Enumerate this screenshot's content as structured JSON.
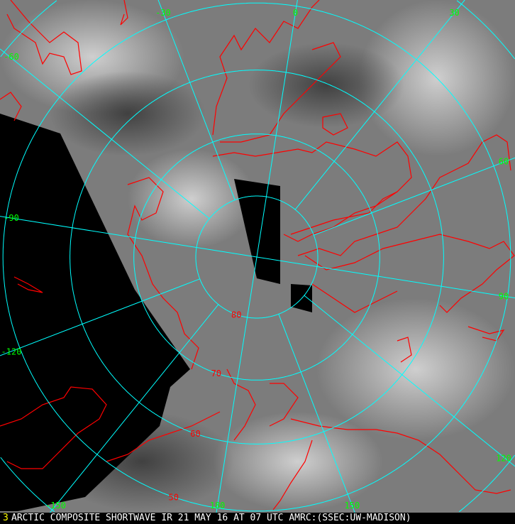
{
  "caption": {
    "frame_number": "3",
    "text": "ARCTIC COMPOSITE SHORTWAVE IR 21 MAY 16 AT 07 UTC AMRC:(SSEC:UW-MADISON)"
  },
  "projection": "polar-stereographic-north",
  "colors": {
    "grid": "#00ffff",
    "coastline": "#ff0000",
    "longitude_label": "#00ff00",
    "latitude_label": "#ff0000",
    "frame_number": "#ffff00",
    "caption_text": "#ffffff",
    "no_data": "#000000"
  },
  "grid": {
    "latitudes": [
      {
        "value": 80,
        "label": "80"
      },
      {
        "value": 70,
        "label": "70"
      },
      {
        "value": 60,
        "label": "60"
      },
      {
        "value": 50,
        "label": "50"
      },
      {
        "value": 40,
        "label": ""
      }
    ],
    "longitudes": [
      {
        "value": 0,
        "label": "0"
      },
      {
        "value": 30,
        "label": "30"
      },
      {
        "value": 60,
        "label": "60"
      },
      {
        "value": 90,
        "label": "90"
      },
      {
        "value": 120,
        "label": "120"
      },
      {
        "value": 150,
        "label": "150"
      },
      {
        "value": 180,
        "label": "180"
      },
      {
        "value": -150,
        "label": "-150"
      },
      {
        "value": -120,
        "label": "-120"
      },
      {
        "value": -90,
        "label": "-90"
      },
      {
        "value": -60,
        "label": "-60"
      },
      {
        "value": -30,
        "label": "-30"
      }
    ]
  }
}
